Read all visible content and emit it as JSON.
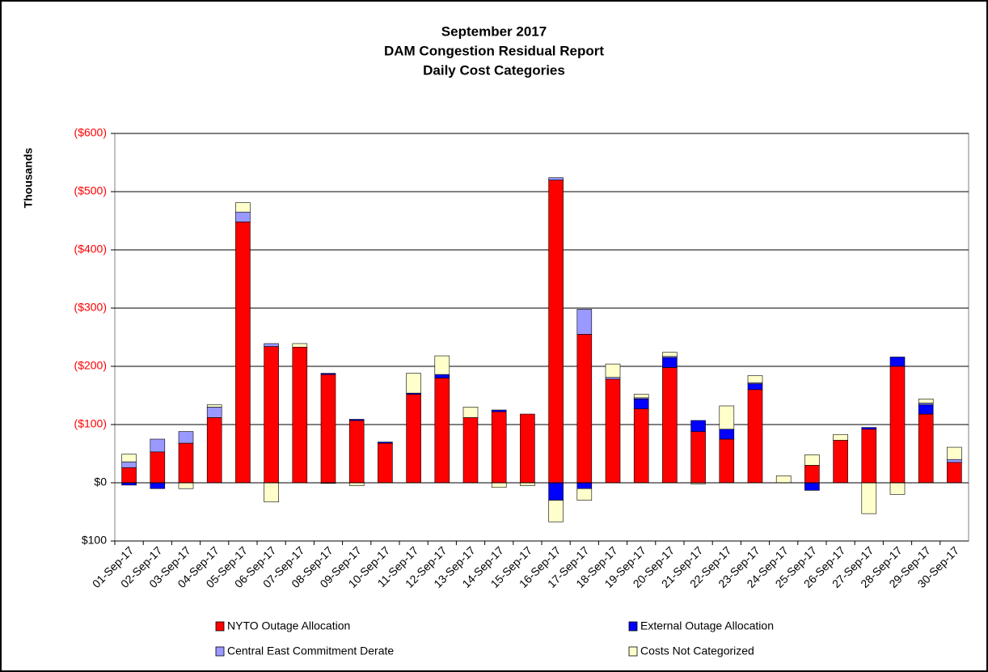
{
  "chart_data": {
    "type": "stacked-bar",
    "title": [
      "September 2017",
      "DAM Congestion Residual Report",
      "Daily Cost Categories"
    ],
    "y_label": "Thousands",
    "categories": [
      "01-Sep-17",
      "02-Sep-17",
      "03-Sep-17",
      "04-Sep-17",
      "05-Sep-17",
      "06-Sep-17",
      "07-Sep-17",
      "08-Sep-17",
      "09-Sep-17",
      "10-Sep-17",
      "11-Sep-17",
      "12-Sep-17",
      "13-Sep-17",
      "14-Sep-17",
      "15-Sep-17",
      "16-Sep-17",
      "17-Sep-17",
      "18-Sep-17",
      "19-Sep-17",
      "20-Sep-17",
      "21-Sep-17",
      "22-Sep-17",
      "23-Sep-17",
      "24-Sep-17",
      "25-Sep-17",
      "26-Sep-17",
      "27-Sep-17",
      "28-Sep-17",
      "29-Sep-17",
      "30-Sep-17"
    ],
    "series": [
      {
        "name": "NYTO Outage Allocation",
        "color": "#ff0000",
        "values": [
          -26,
          -53,
          -68,
          -112,
          -448,
          -234,
          -233,
          -186,
          -107,
          -68,
          -152,
          -180,
          -112,
          -122,
          -118,
          -520,
          -255,
          -178,
          -127,
          -198,
          -88,
          -75,
          -160,
          0,
          -30,
          -73,
          -92,
          -200,
          -118,
          -35
        ]
      },
      {
        "name": "External Outage Allocation",
        "color": "#0000ff",
        "values": [
          4,
          10,
          0,
          0,
          0,
          0,
          0,
          -2,
          -2,
          -2,
          -2,
          -6,
          0,
          -3,
          0,
          30,
          10,
          0,
          -17,
          -17,
          -19,
          -17,
          -10,
          0,
          13,
          0,
          -3,
          -16,
          -16,
          0
        ]
      },
      {
        "name": "Central East Commitment Derate",
        "color": "#9999ff",
        "values": [
          -10,
          -22,
          -20,
          -18,
          -17,
          -5,
          0,
          0,
          0,
          0,
          0,
          0,
          0,
          0,
          0,
          -4,
          -43,
          -3,
          -2,
          -2,
          0,
          0,
          -2,
          0,
          0,
          0,
          0,
          0,
          -3,
          -5
        ]
      },
      {
        "name": "Costs Not Categorized",
        "color": "#ffffcc",
        "values": [
          -13,
          0,
          10,
          -4,
          -16,
          33,
          -6,
          1,
          5,
          0,
          -34,
          -32,
          -18,
          8,
          5,
          37,
          20,
          -23,
          -6,
          -7,
          2,
          -40,
          -12,
          -12,
          -18,
          -10,
          53,
          20,
          -7,
          -21
        ]
      }
    ],
    "ylim": [
      100,
      -600
    ],
    "yticks": [
      {
        "value": -600,
        "label": "($600)"
      },
      {
        "value": -500,
        "label": "($500)"
      },
      {
        "value": -400,
        "label": "($400)"
      },
      {
        "value": -300,
        "label": "($300)"
      },
      {
        "value": -200,
        "label": "($200)"
      },
      {
        "value": -100,
        "label": "($100)"
      },
      {
        "value": 0,
        "label": "$0"
      },
      {
        "value": 100,
        "label": "$100"
      }
    ],
    "grid": true
  }
}
